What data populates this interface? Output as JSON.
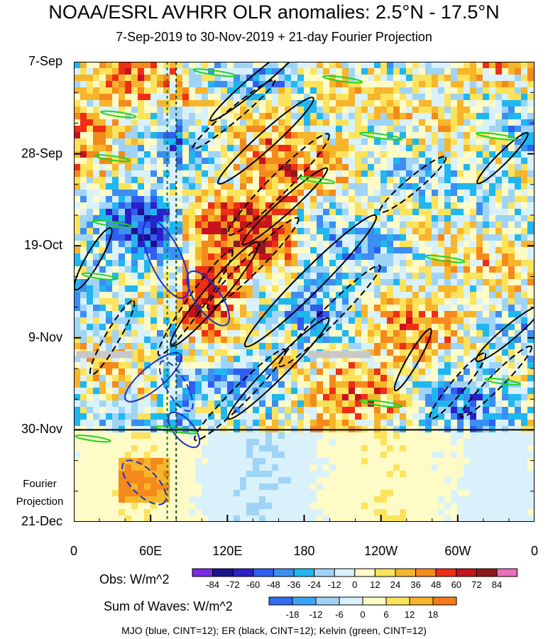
{
  "chart_data": {
    "type": "heatmap",
    "title": "NOAA/ESRL AVHRR OLR anomalies: 2.5°N - 17.5°N",
    "subtitle": "7-Sep-2019 to 30-Nov-2019 + 21-day Fourier Projection",
    "x_tick_labels": [
      "0",
      "60E",
      "120E",
      "180",
      "120W",
      "60W",
      "0"
    ],
    "x_ticks_deg": [
      0,
      60,
      120,
      180,
      240,
      300,
      360
    ],
    "xlim": [
      0,
      360
    ],
    "y_tick_labels": [
      "7-Sep",
      "28-Sep",
      "19-Oct",
      "9-Nov",
      "30-Nov",
      "21-Dec"
    ],
    "y_ticks_days": [
      0,
      21,
      42,
      63,
      84,
      105
    ],
    "ylim": [
      0,
      105
    ],
    "projection_label": "Fourier Projection",
    "projection_start_day": 84,
    "reference_longitudes_deg": [
      73,
      80
    ],
    "obs_legend": {
      "label": "Obs: W/m^2",
      "levels": [
        -84,
        -72,
        -60,
        -48,
        -36,
        -24,
        -12,
        0,
        12,
        24,
        36,
        48,
        60,
        72,
        84
      ],
      "colors": [
        "#7b28e6",
        "#18128f",
        "#2a1fc9",
        "#2f5ef0",
        "#3c8ef3",
        "#20b7f0",
        "#9fd4f6",
        "#d9f1fb",
        "#fffbc7",
        "#fbe35c",
        "#f7b52b",
        "#f58a1c",
        "#ef2e16",
        "#c8121e",
        "#8c1a1d",
        "#ea6eb8"
      ]
    },
    "waves_legend": {
      "label": "Sum of Waves: W/m^2",
      "levels": [
        -18,
        -12,
        -6,
        0,
        6,
        12,
        18
      ],
      "colors": [
        "#2f6ff0",
        "#3fa3f5",
        "#9fd2f5",
        "#d8f0fb",
        "#fffbc7",
        "#fbe35c",
        "#f7b52b",
        "#f57a1c"
      ]
    },
    "footer": "MJO (blue, CINT=12); ER (black, CINT=12); Kelvin (green, CINT=12)",
    "wave_colors": {
      "mjo": "#1a2fd1",
      "er": "#000000",
      "kelvin": "#22d322"
    }
  }
}
